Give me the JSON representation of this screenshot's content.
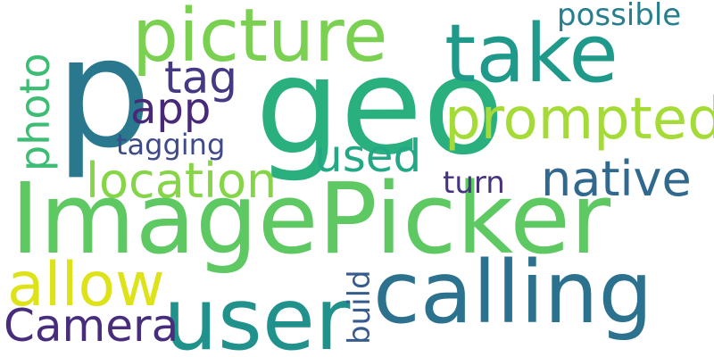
{
  "words": [
    {
      "id": "imagepicker",
      "text": "ImagePicker",
      "color": "#5ec962"
    },
    {
      "id": "p",
      "text": "p",
      "color": "#2a788e"
    },
    {
      "id": "geo",
      "text": "geo",
      "color": "#2ab07f"
    },
    {
      "id": "calling",
      "text": "calling",
      "color": "#2c728e"
    },
    {
      "id": "user",
      "text": "user",
      "color": "#21918c"
    },
    {
      "id": "take",
      "text": "take",
      "color": "#1f9a8a"
    },
    {
      "id": "picture",
      "text": "picture",
      "color": "#7ad151"
    },
    {
      "id": "prompted",
      "text": "prompted",
      "color": "#a5db36"
    },
    {
      "id": "allow",
      "text": "allow",
      "color": "#dde318"
    },
    {
      "id": "location",
      "text": "location",
      "color": "#86d549"
    },
    {
      "id": "native",
      "text": "native",
      "color": "#31688e"
    },
    {
      "id": "camera",
      "text": "Camera",
      "color": "#472d7b"
    },
    {
      "id": "photo",
      "text": "photo",
      "color": "#3dbc74"
    },
    {
      "id": "used",
      "text": "used",
      "color": "#22a884"
    },
    {
      "id": "tag",
      "text": "tag",
      "color": "#443983"
    },
    {
      "id": "app",
      "text": "app",
      "color": "#482878"
    },
    {
      "id": "possible",
      "text": "possible",
      "color": "#277f8e"
    },
    {
      "id": "tagging",
      "text": "tagging",
      "color": "#3e4a89"
    },
    {
      "id": "turn",
      "text": "turn",
      "color": "#46327e"
    },
    {
      "id": "build",
      "text": "build",
      "color": "#365c8d"
    }
  ]
}
